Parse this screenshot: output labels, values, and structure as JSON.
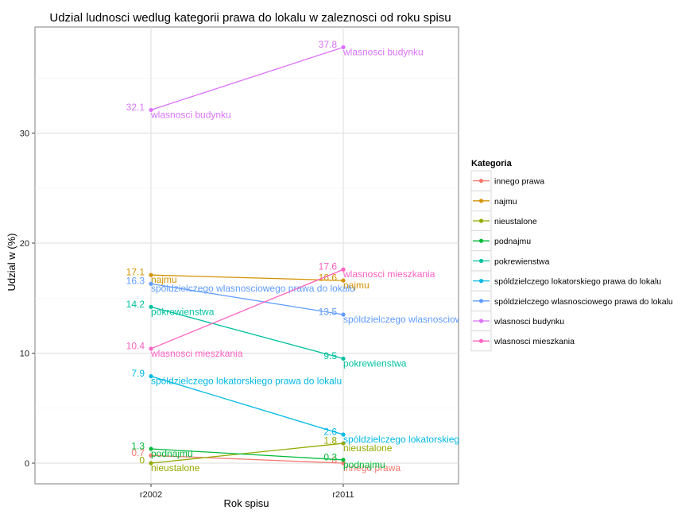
{
  "chart_data": {
    "type": "line",
    "title": "Udzial ludnosci wedlug kategorii prawa do lokalu w zaleznosci od roku spisu",
    "xlabel": "Rok spisu",
    "ylabel": "Udzial w (%)",
    "categories": [
      "r2002",
      "r2011"
    ],
    "y_ticks": [
      0,
      10,
      20,
      30
    ],
    "ylim": [
      -1.8,
      39.0
    ],
    "grid": true,
    "legend": {
      "title": "Kategoria",
      "position": "right"
    },
    "series": [
      {
        "name": "innego prawa",
        "color": "#F8766D",
        "values": [
          0.7,
          0.0
        ],
        "value_labels": [
          "0.7",
          "0"
        ],
        "end_labels": [
          "",
          "innego prawa"
        ]
      },
      {
        "name": "najmu",
        "color": "#D39200",
        "values": [
          17.1,
          16.6
        ],
        "value_labels": [
          "17.1",
          "16.6"
        ],
        "end_labels": [
          "najmu",
          "najmu"
        ]
      },
      {
        "name": "nieustalone",
        "color": "#93AA00",
        "values": [
          0.0,
          1.8
        ],
        "value_labels": [
          "0",
          "1.8"
        ],
        "end_labels": [
          "nieustalone",
          "nieustalone"
        ]
      },
      {
        "name": "podnajmu",
        "color": "#00BA38",
        "values": [
          1.3,
          0.3
        ],
        "value_labels": [
          "1.3",
          "0.3"
        ],
        "end_labels": [
          "podnajmu",
          "podnajmu"
        ]
      },
      {
        "name": "pokrewienstwa",
        "color": "#00C19F",
        "values": [
          14.2,
          9.5
        ],
        "value_labels": [
          "14.2",
          "9.5"
        ],
        "end_labels": [
          "pokrewienstwa",
          "pokrewienstwa"
        ]
      },
      {
        "name": "spóldzielczego lokatorskiego prawa do lokalu",
        "color": "#00B9E3",
        "values": [
          7.9,
          2.6
        ],
        "value_labels": [
          "7.9",
          "2.6"
        ],
        "end_labels": [
          "spóldzielczego lokatorskiego prawa do lokalu",
          "spóldzielczego lokatorskieg"
        ]
      },
      {
        "name": "spóldzielczego wlasnosciowego prawa do lokalu",
        "color": "#619CFF",
        "values": [
          16.3,
          13.5
        ],
        "value_labels": [
          "16.3",
          "13.5"
        ],
        "end_labels": [
          "spóldzielczego wlasnosciowego prawa do lokalu",
          "spóldzielczego wlasnosciow"
        ]
      },
      {
        "name": "wlasnosci budynku",
        "color": "#DB72FB",
        "values": [
          32.1,
          37.8
        ],
        "value_labels": [
          "32.1",
          "37.8"
        ],
        "end_labels": [
          "wlasnosci budynku",
          "wlasnosci budynku"
        ]
      },
      {
        "name": "wlasnosci mieszkania",
        "color": "#FF61C3",
        "values": [
          10.4,
          17.6
        ],
        "value_labels": [
          "10.4",
          "17.6"
        ],
        "end_labels": [
          "wlasnosci mieszkania",
          "wlasnosci mieszkania"
        ]
      }
    ]
  }
}
